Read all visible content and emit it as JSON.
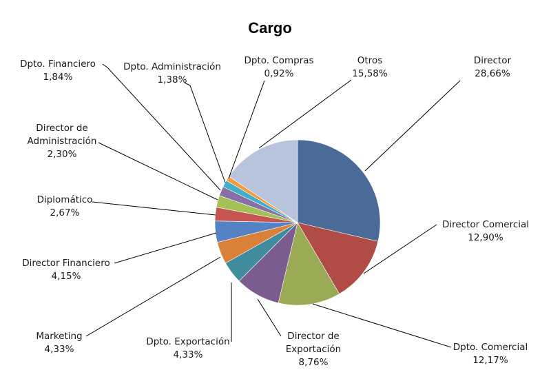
{
  "chart_data": {
    "type": "pie",
    "title": "Cargo",
    "slices": [
      {
        "label": "Director",
        "value": 28.66,
        "display": "28,66%",
        "color": "#4A6B98"
      },
      {
        "label": "Director Comercial",
        "value": 12.9,
        "display": "12,90%",
        "color": "#B04B45"
      },
      {
        "label": "Dpto. Comercial",
        "value": 12.17,
        "display": "12,17%",
        "color": "#9AAA57"
      },
      {
        "label": "Director de Exportación",
        "value": 8.76,
        "display": "8,76%",
        "color": "#7A5D8E"
      },
      {
        "label": "Dpto. Exportación",
        "value": 4.33,
        "display": "4,33%",
        "color": "#3F8C9E"
      },
      {
        "label": "Marketing",
        "value": 4.33,
        "display": "4,33%",
        "color": "#DA8139"
      },
      {
        "label": "Director Financiero",
        "value": 4.15,
        "display": "4,15%",
        "color": "#5582C3"
      },
      {
        "label": "Diplomático",
        "value": 2.67,
        "display": "2,67%",
        "color": "#C65551"
      },
      {
        "label": "Director de Administración",
        "value": 2.3,
        "display": "2,30%",
        "color": "#A3C156"
      },
      {
        "label": "Dpto. Financiero",
        "value": 1.84,
        "display": "1,84%",
        "color": "#8670A5"
      },
      {
        "label": "Dpto. Administración",
        "value": 1.38,
        "display": "1,38%",
        "color": "#41AFC8"
      },
      {
        "label": "Dpto. Compras",
        "value": 0.92,
        "display": "0,92%",
        "color": "#F39A3E"
      },
      {
        "label": "Otros",
        "value": 15.58,
        "display": "15,58%",
        "color": "#B8C4DC"
      }
    ],
    "legend": "none"
  }
}
